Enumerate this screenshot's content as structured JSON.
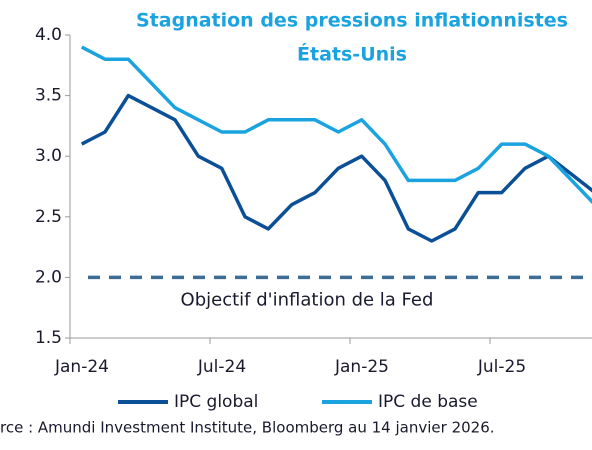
{
  "chart_data": {
    "type": "line",
    "title": [
      "Stagnation des pressions inflationnistes",
      "États-Unis"
    ],
    "categories": [
      "Jan-24",
      null,
      null,
      null,
      null,
      null,
      "Jul-24",
      null,
      null,
      null,
      null,
      null,
      "Jan-25",
      null,
      null,
      null,
      null,
      null,
      "Jul-25",
      null,
      null,
      null,
      null
    ],
    "series": [
      {
        "name": "IPC global",
        "color": "#0b4f96",
        "values": [
          3.1,
          3.2,
          3.5,
          3.4,
          3.3,
          3.0,
          2.9,
          2.5,
          2.4,
          2.6,
          2.7,
          2.9,
          3.0,
          2.8,
          2.4,
          2.3,
          2.4,
          2.7,
          2.7,
          2.9,
          3.0,
          2.85,
          2.7
        ]
      },
      {
        "name": "IPC de base",
        "color": "#1ba3e0",
        "values": [
          3.9,
          3.8,
          3.8,
          3.6,
          3.4,
          3.3,
          3.2,
          3.2,
          3.3,
          3.3,
          3.3,
          3.2,
          3.3,
          3.1,
          2.8,
          2.8,
          2.8,
          2.9,
          3.1,
          3.1,
          3.0,
          2.8,
          2.6
        ]
      }
    ],
    "ylim": [
      1.5,
      4.0
    ],
    "yticks": [
      {
        "value": 1.5,
        "label": "1.5"
      },
      {
        "value": 2.0,
        "label": "2.0"
      },
      {
        "value": 2.5,
        "label": "2.5"
      },
      {
        "value": 3.0,
        "label": "3.0"
      },
      {
        "value": 3.5,
        "label": "3.5"
      },
      {
        "value": 4.0,
        "label": "4.0"
      }
    ],
    "target": {
      "value": 2.0,
      "label": "Objectif d'inflation de la Fed",
      "color": "#3e6e96"
    },
    "source": "rce : Amundi Investment Institute, Bloomberg au 14 janvier 2026."
  }
}
